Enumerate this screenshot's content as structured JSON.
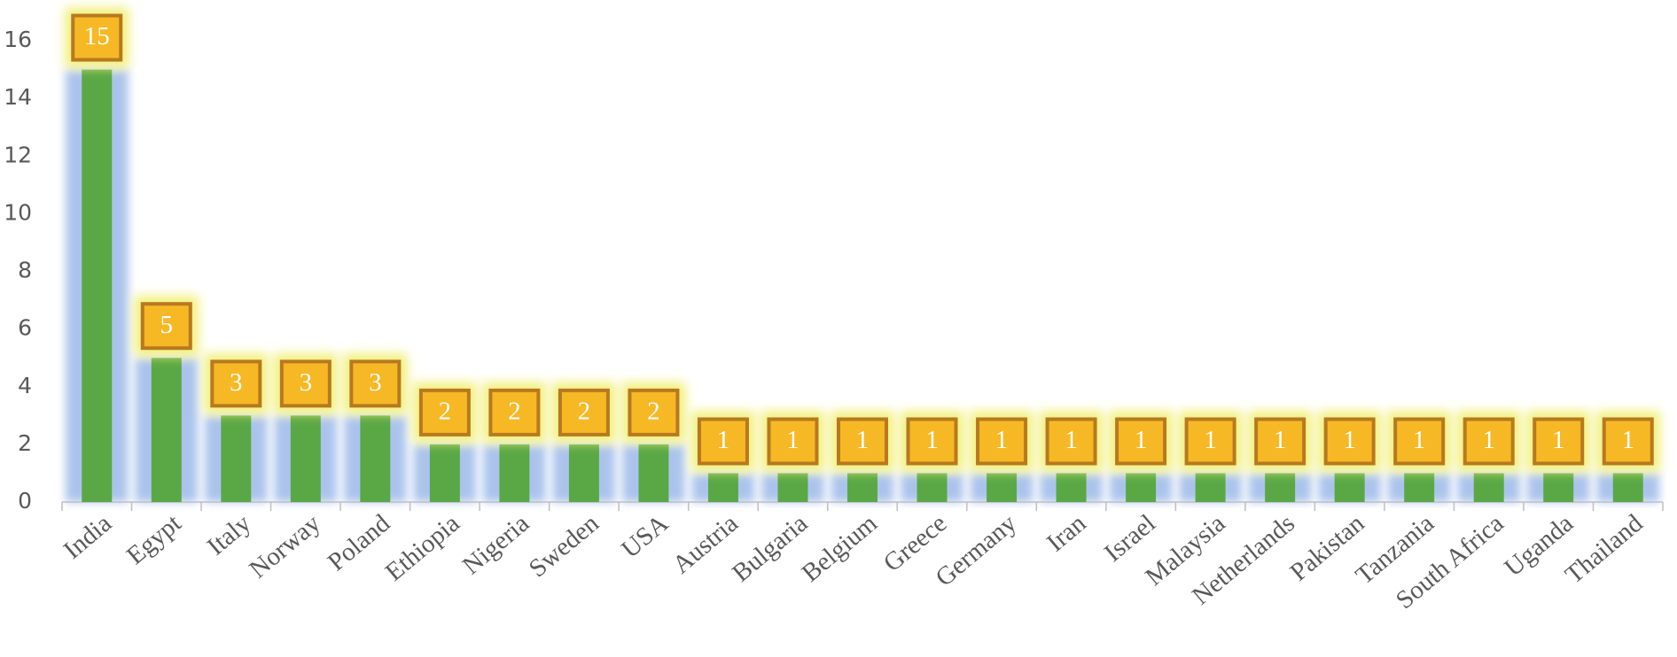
{
  "chart_data": {
    "type": "bar",
    "categories": [
      "India",
      "Egypt",
      "Italy",
      "Norway",
      "Poland",
      "Ethiopia",
      "Nigeria",
      "Sweden",
      "USA",
      "Austria",
      "Bulgaria",
      "Belgium",
      "Greece",
      "Germany",
      "Iran",
      "Israel",
      "Malaysia",
      "Netherlands",
      "Pakistan",
      "Tanzania",
      "South Africa",
      "Uganda",
      "Thailand"
    ],
    "values": [
      15,
      5,
      3,
      3,
      3,
      2,
      2,
      2,
      2,
      1,
      1,
      1,
      1,
      1,
      1,
      1,
      1,
      1,
      1,
      1,
      1,
      1,
      1
    ],
    "color": "#5aa845",
    "ylim": [
      0,
      16
    ],
    "yticks": [
      0,
      2,
      4,
      6,
      8,
      10,
      12,
      14,
      16
    ],
    "grid": false
  }
}
